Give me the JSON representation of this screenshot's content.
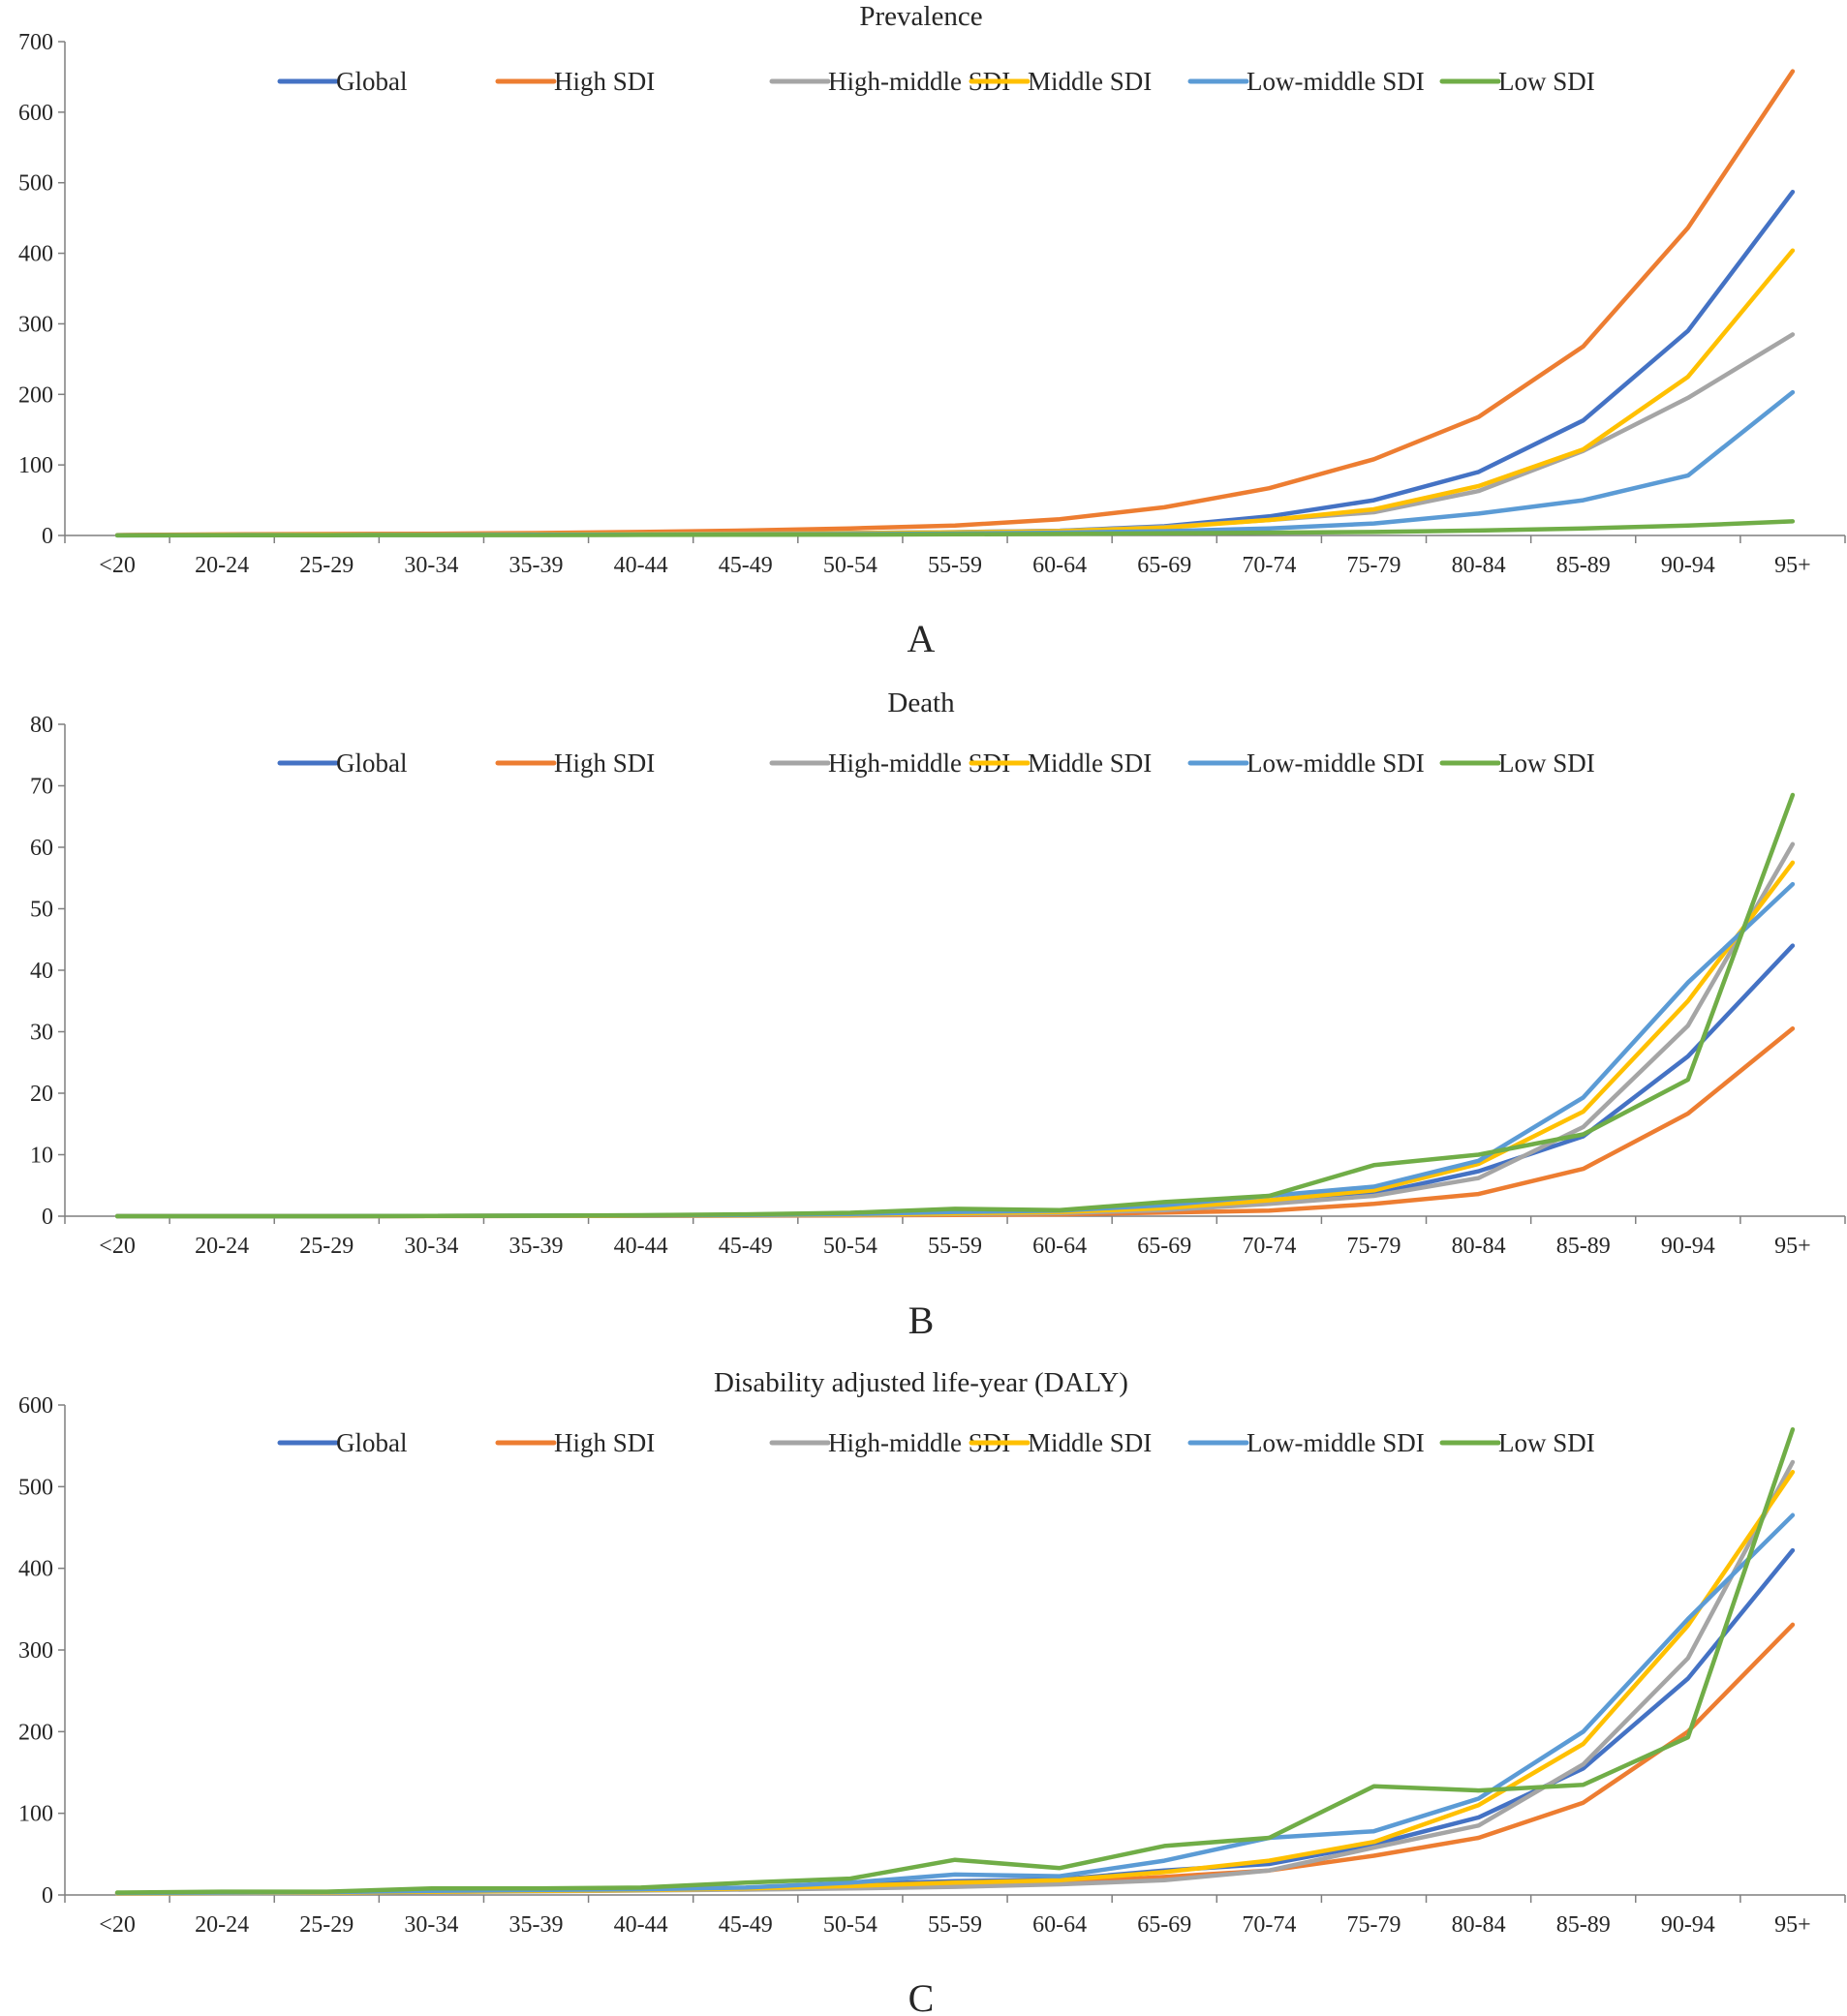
{
  "categories": [
    "<20",
    "20-24",
    "25-29",
    "30-34",
    "35-39",
    "40-44",
    "45-49",
    "50-54",
    "55-59",
    "60-64",
    "65-69",
    "70-74",
    "75-79",
    "80-84",
    "85-89",
    "90-94",
    "95+"
  ],
  "colors": {
    "Global": "#4472c4",
    "High SDI": "#ed7d31",
    "High-middle SDI": "#a5a5a5",
    "Middle SDI": "#ffc000",
    "Low-middle SDI": "#5b9bd5",
    "Low SDI": "#70ad47"
  },
  "chart_data": [
    {
      "type": "line",
      "title": "Prevalence",
      "panel_label": "A",
      "xlabel": "",
      "ylabel": "",
      "ylim": [
        0,
        700
      ],
      "yticks": [
        0,
        100,
        200,
        300,
        400,
        500,
        600,
        700
      ],
      "legend": "top-center",
      "series": [
        {
          "name": "Global",
          "values": [
            0.3,
            0.8,
            1,
            1.3,
            1.6,
            2,
            2.6,
            3.4,
            4.6,
            6.7,
            13,
            27,
            50,
            90,
            163,
            290,
            487
          ]
        },
        {
          "name": "High SDI",
          "values": [
            0.5,
            1.5,
            2,
            2.5,
            3.5,
            5,
            7,
            10,
            14,
            23,
            40,
            67,
            108,
            168,
            268,
            436,
            658
          ]
        },
        {
          "name": "High-middle SDI",
          "values": [
            0.3,
            0.8,
            1,
            1.3,
            1.6,
            2,
            2.6,
            3.4,
            4.6,
            6.5,
            12,
            22,
            33,
            63,
            120,
            195,
            285
          ]
        },
        {
          "name": "Middle SDI",
          "values": [
            0.3,
            0.7,
            0.9,
            1.1,
            1.4,
            1.8,
            2.3,
            3,
            4.2,
            6,
            11,
            22,
            37,
            70,
            122,
            225,
            404
          ]
        },
        {
          "name": "Low-middle SDI",
          "values": [
            0.2,
            0.4,
            0.5,
            0.7,
            0.9,
            1.2,
            1.6,
            2,
            2.8,
            4,
            6,
            10,
            17,
            31,
            50,
            85,
            203
          ]
        },
        {
          "name": "Low SDI",
          "values": [
            0.1,
            0.3,
            0.4,
            0.5,
            0.6,
            0.8,
            1,
            1.2,
            1.6,
            2.2,
            3,
            4,
            5,
            7,
            10,
            14,
            20
          ]
        }
      ]
    },
    {
      "type": "line",
      "title": "Death",
      "panel_label": "B",
      "xlabel": "",
      "ylabel": "",
      "ylim": [
        0,
        80
      ],
      "yticks": [
        0,
        10,
        20,
        30,
        40,
        50,
        60,
        70,
        80
      ],
      "legend": "top-center",
      "series": [
        {
          "name": "Global",
          "values": [
            0,
            0,
            0,
            0.05,
            0.07,
            0.1,
            0.15,
            0.25,
            0.4,
            0.6,
            1.2,
            2.2,
            3.6,
            7.3,
            13,
            26,
            44
          ]
        },
        {
          "name": "High SDI",
          "values": [
            0,
            0,
            0,
            0.02,
            0.03,
            0.05,
            0.08,
            0.12,
            0.2,
            0.3,
            0.6,
            0.9,
            2,
            3.6,
            7.7,
            16.7,
            30.5
          ]
        },
        {
          "name": "High-middle SDI",
          "values": [
            0,
            0,
            0,
            0.04,
            0.06,
            0.08,
            0.12,
            0.2,
            0.35,
            0.5,
            1,
            2,
            3.3,
            6.2,
            14.5,
            31,
            60.5
          ]
        },
        {
          "name": "Middle SDI",
          "values": [
            0,
            0,
            0,
            0.05,
            0.07,
            0.1,
            0.15,
            0.25,
            0.45,
            0.7,
            1.3,
            2.6,
            4.2,
            8.5,
            17,
            35,
            57.5
          ]
        },
        {
          "name": "Low-middle SDI",
          "values": [
            0,
            0,
            0,
            0.05,
            0.08,
            0.12,
            0.2,
            0.35,
            0.7,
            0.9,
            1.8,
            3.3,
            4.8,
            9,
            19.3,
            38,
            54
          ]
        },
        {
          "name": "Low SDI",
          "values": [
            0,
            0,
            0,
            0.05,
            0.08,
            0.15,
            0.3,
            0.55,
            1.2,
            1,
            2.3,
            3.3,
            8.3,
            10,
            13.3,
            22.2,
            68.5
          ]
        }
      ]
    },
    {
      "type": "line",
      "title": "Disability adjusted life-year (DALY)",
      "panel_label": "C",
      "xlabel": "",
      "ylabel": "",
      "ylim": [
        0,
        600
      ],
      "yticks": [
        0,
        100,
        200,
        300,
        400,
        500,
        600
      ],
      "legend": "top-center",
      "series": [
        {
          "name": "Global",
          "values": [
            2,
            2.5,
            3,
            4.5,
            5.5,
            6.5,
            8,
            13,
            17,
            19,
            30,
            38,
            62,
            95,
            155,
            265,
            422
          ]
        },
        {
          "name": "High SDI",
          "values": [
            2,
            2.5,
            3,
            4.5,
            5,
            6,
            7,
            10,
            13,
            15,
            22,
            30,
            48,
            70,
            113,
            200,
            331
          ]
        },
        {
          "name": "High-middle SDI",
          "values": [
            1.5,
            2,
            2.5,
            3.5,
            4.5,
            5.5,
            6.5,
            8,
            10,
            13,
            18,
            30,
            58,
            85,
            160,
            290,
            530
          ]
        },
        {
          "name": "Middle SDI",
          "values": [
            2,
            2.5,
            3,
            4,
            5,
            6,
            8,
            11,
            15,
            18,
            28,
            42,
            65,
            110,
            185,
            330,
            518
          ]
        },
        {
          "name": "Low-middle SDI",
          "values": [
            2.5,
            3,
            3.5,
            5,
            6,
            7,
            9,
            15,
            25,
            23,
            42,
            70,
            78,
            118,
            200,
            338,
            465
          ]
        },
        {
          "name": "Low SDI",
          "values": [
            3,
            4,
            4,
            8,
            8,
            9,
            15,
            20,
            43,
            33,
            60,
            70,
            133,
            128,
            135,
            193,
            570
          ]
        }
      ]
    }
  ]
}
